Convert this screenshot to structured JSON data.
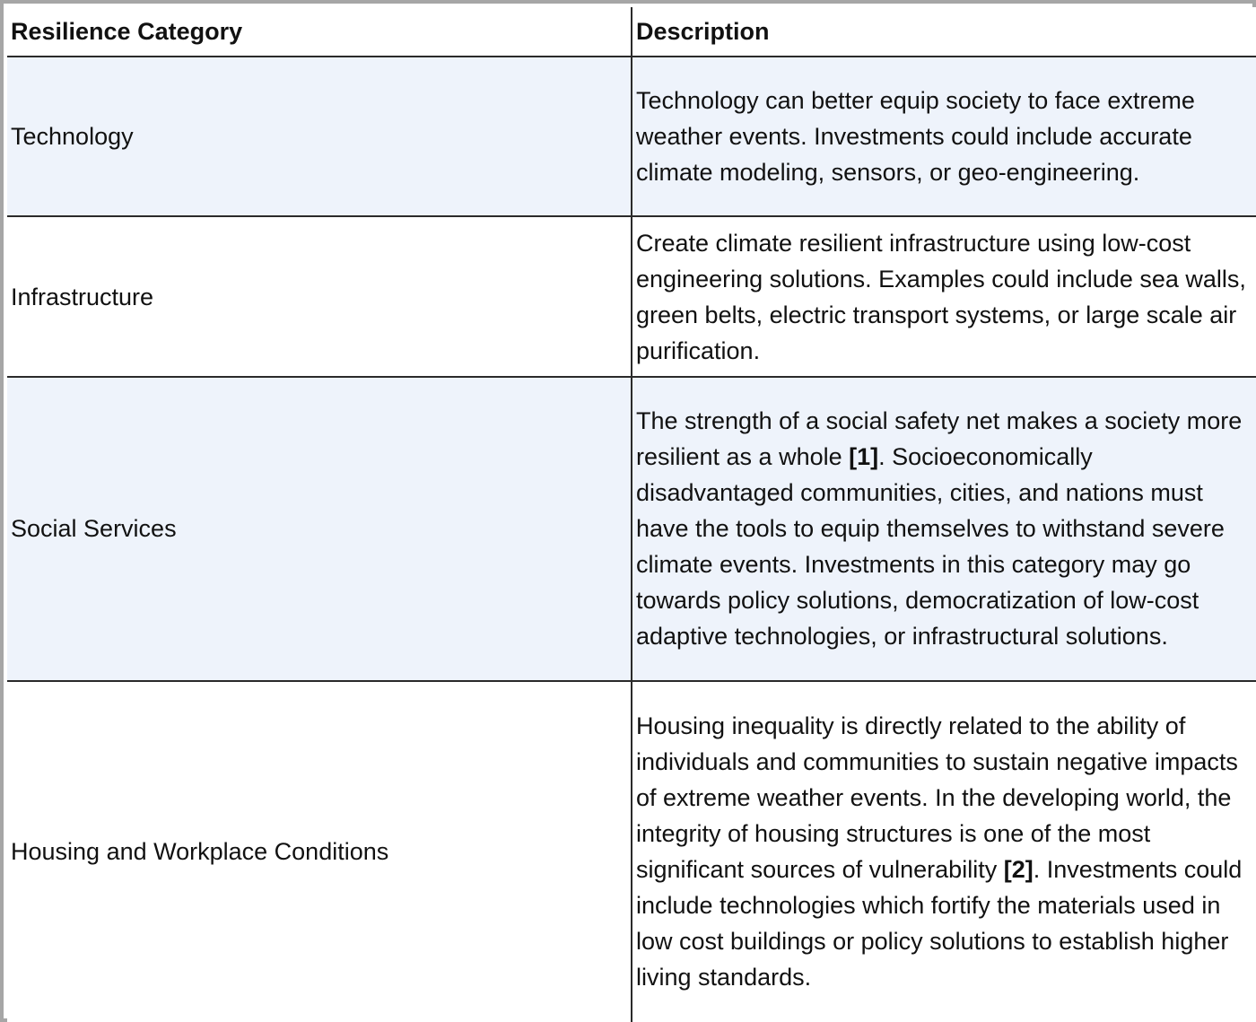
{
  "headers": {
    "category": "Resilience Category",
    "description": "Description"
  },
  "rows": [
    {
      "category": "Technology",
      "description": "Technology can better equip society to face extreme weather events. Investments could include accurate climate modeling, sensors, or geo-engineering."
    },
    {
      "category": "Infrastructure",
      "description": "Create climate resilient infrastructure using low-cost engineering solutions. Examples could include sea walls, green belts, electric transport systems, or large scale air purification."
    },
    {
      "category": "Social Services",
      "description_before_ref": "The strength of a social safety net makes a society more resilient as a whole ",
      "ref": "[1]",
      "description_after_ref": ". Socioeconomically disadvantaged communities, cities, and nations must have the tools to equip themselves to withstand severe climate events. Investments in this category may go towards policy solutions, democratization of low-cost adaptive technologies, or infrastructural solutions."
    },
    {
      "category": "Housing and Workplace Conditions",
      "description_before_ref": "Housing inequality is directly related to the ability of individuals and communities to sustain negative impacts of extreme weather events. In the developing world, the integrity of housing structures is one of the most significant sources of vulnerability ",
      "ref": "[2]",
      "description_after_ref": ". Investments could include technologies which fortify the materials used in low cost buildings or policy solutions to establish higher living standards."
    }
  ]
}
